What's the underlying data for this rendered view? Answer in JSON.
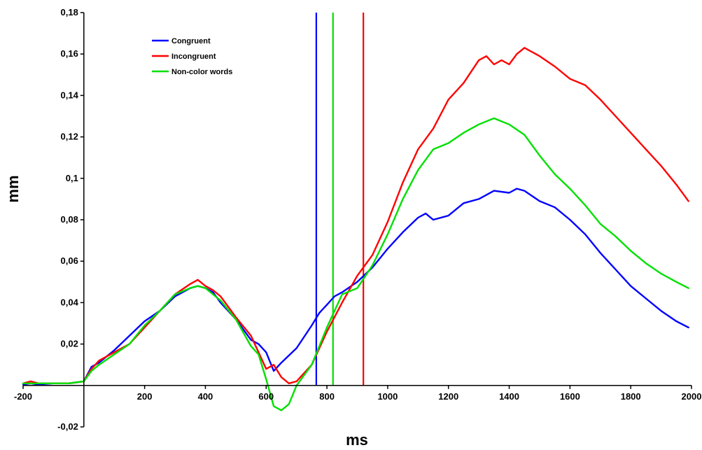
{
  "chart_data": {
    "type": "line",
    "title": "",
    "xlabel": "ms",
    "ylabel": "mm",
    "xlim": [
      -200,
      2000
    ],
    "ylim": [
      -0.02,
      0.18
    ],
    "x_ticks": [
      -200,
      200,
      400,
      600,
      800,
      1000,
      1200,
      1400,
      1600,
      1800,
      2000
    ],
    "y_ticks": [
      -0.02,
      0.02,
      0.04,
      0.06,
      0.08,
      0.1,
      0.12,
      0.14,
      0.16,
      0.18
    ],
    "x_tick_labels": [
      "-200",
      "200",
      "400",
      "600",
      "800",
      "1000",
      "1200",
      "1400",
      "1600",
      "1800",
      "2000"
    ],
    "y_tick_labels": [
      "-0,02",
      "0,02",
      "0,04",
      "0,06",
      "0,08",
      "0,1",
      "0,12",
      "0,14",
      "0,16",
      "0,18"
    ],
    "grid": false,
    "legend_position": "top-left",
    "series": [
      {
        "name": "Congruent",
        "color": "#0000ff",
        "x": [
          -200,
          -175,
          -150,
          -100,
          -50,
          0,
          25,
          50,
          100,
          150,
          200,
          250,
          300,
          350,
          375,
          400,
          425,
          450,
          500,
          550,
          575,
          600,
          625,
          650,
          700,
          750,
          775,
          800,
          825,
          850,
          900,
          950,
          1000,
          1050,
          1100,
          1125,
          1150,
          1200,
          1250,
          1300,
          1350,
          1400,
          1425,
          1450,
          1500,
          1550,
          1600,
          1650,
          1700,
          1750,
          1800,
          1850,
          1900,
          1950,
          1990
        ],
        "y": [
          0.0005,
          0.001,
          0.0005,
          0.001,
          0.001,
          0.002,
          0.009,
          0.011,
          0.017,
          0.024,
          0.031,
          0.036,
          0.043,
          0.047,
          0.048,
          0.047,
          0.045,
          0.04,
          0.032,
          0.022,
          0.02,
          0.016,
          0.007,
          0.011,
          0.018,
          0.029,
          0.035,
          0.039,
          0.043,
          0.045,
          0.05,
          0.057,
          0.066,
          0.074,
          0.081,
          0.083,
          0.08,
          0.082,
          0.088,
          0.09,
          0.094,
          0.093,
          0.095,
          0.094,
          0.089,
          0.086,
          0.08,
          0.073,
          0.064,
          0.056,
          0.048,
          0.042,
          0.036,
          0.031,
          0.028
        ]
      },
      {
        "name": "Incongruent",
        "color": "#ff0000",
        "x": [
          -200,
          -175,
          -150,
          -100,
          -50,
          0,
          25,
          50,
          100,
          150,
          200,
          250,
          300,
          350,
          375,
          400,
          425,
          450,
          500,
          550,
          600,
          625,
          650,
          675,
          700,
          750,
          800,
          850,
          900,
          950,
          1000,
          1050,
          1100,
          1150,
          1200,
          1250,
          1300,
          1325,
          1350,
          1375,
          1400,
          1425,
          1450,
          1500,
          1550,
          1600,
          1650,
          1700,
          1750,
          1800,
          1850,
          1900,
          1950,
          1990
        ],
        "y": [
          0.001,
          0.002,
          0.001,
          0.001,
          0.001,
          0.002,
          0.008,
          0.012,
          0.016,
          0.02,
          0.028,
          0.036,
          0.044,
          0.049,
          0.051,
          0.048,
          0.046,
          0.043,
          0.033,
          0.024,
          0.008,
          0.01,
          0.004,
          0.001,
          0.002,
          0.01,
          0.026,
          0.04,
          0.053,
          0.063,
          0.079,
          0.098,
          0.114,
          0.124,
          0.138,
          0.146,
          0.157,
          0.159,
          0.155,
          0.157,
          0.155,
          0.16,
          0.163,
          0.159,
          0.154,
          0.148,
          0.145,
          0.138,
          0.13,
          0.122,
          0.114,
          0.106,
          0.097,
          0.089
        ]
      },
      {
        "name": "Non-color words",
        "color": "#00e000",
        "x": [
          -200,
          -150,
          -100,
          -50,
          0,
          25,
          50,
          100,
          150,
          200,
          250,
          300,
          350,
          375,
          400,
          425,
          450,
          500,
          550,
          575,
          600,
          625,
          650,
          675,
          700,
          750,
          800,
          850,
          900,
          950,
          1000,
          1050,
          1100,
          1150,
          1200,
          1250,
          1300,
          1350,
          1400,
          1450,
          1500,
          1550,
          1600,
          1650,
          1700,
          1750,
          1800,
          1850,
          1900,
          1950,
          1990
        ],
        "y": [
          0.001,
          0.001,
          0.001,
          0.001,
          0.002,
          0.007,
          0.01,
          0.015,
          0.02,
          0.029,
          0.036,
          0.044,
          0.047,
          0.048,
          0.047,
          0.044,
          0.041,
          0.032,
          0.019,
          0.015,
          0.003,
          -0.01,
          -0.012,
          -0.009,
          0.0,
          0.01,
          0.028,
          0.044,
          0.047,
          0.058,
          0.073,
          0.09,
          0.104,
          0.114,
          0.117,
          0.122,
          0.126,
          0.129,
          0.126,
          0.121,
          0.111,
          0.102,
          0.095,
          0.087,
          0.078,
          0.072,
          0.065,
          0.059,
          0.054,
          0.05,
          0.047
        ]
      }
    ],
    "vertical_markers": [
      {
        "x": 765,
        "color": "#0000ff"
      },
      {
        "x": 820,
        "color": "#00e000"
      },
      {
        "x": 920,
        "color": "#ff0000"
      }
    ]
  }
}
